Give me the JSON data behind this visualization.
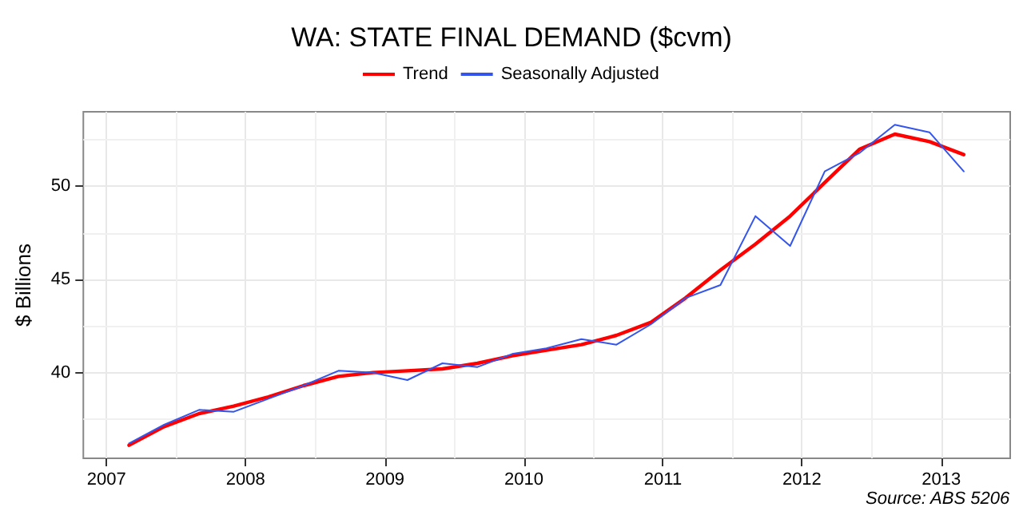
{
  "chart_data": {
    "type": "line",
    "title": "WA: STATE FINAL DEMAND ($cvm)",
    "ylabel": "$ Billions",
    "annotations": [
      "Source: ABS 5206"
    ],
    "x": [
      "2007-03",
      "2007-06",
      "2007-09",
      "2007-12",
      "2008-03",
      "2008-06",
      "2008-09",
      "2008-12",
      "2009-03",
      "2009-06",
      "2009-09",
      "2009-12",
      "2010-03",
      "2010-06",
      "2010-09",
      "2010-12",
      "2011-03",
      "2011-06",
      "2011-09",
      "2011-12",
      "2012-03",
      "2012-06",
      "2012-09",
      "2012-12",
      "2013-03"
    ],
    "series": [
      {
        "name": "Trend",
        "color": "#ff0000",
        "values": [
          36.1,
          37.1,
          37.8,
          38.2,
          38.7,
          39.3,
          39.8,
          40.0,
          40.1,
          40.2,
          40.5,
          40.9,
          41.2,
          41.5,
          42.0,
          42.7,
          44.0,
          45.5,
          46.9,
          48.4,
          50.2,
          52.0,
          52.8,
          52.4,
          51.7
        ]
      },
      {
        "name": "Seasonally Adjusted",
        "color": "#3355ee",
        "values": [
          36.2,
          37.2,
          38.0,
          37.9,
          38.6,
          39.3,
          40.1,
          40.0,
          39.6,
          40.5,
          40.3,
          41.0,
          41.3,
          41.8,
          41.5,
          42.6,
          44.0,
          44.7,
          48.4,
          46.8,
          50.8,
          51.8,
          53.3,
          52.9,
          50.8
        ]
      }
    ],
    "xlim": [
      "2006-11",
      "2013-07"
    ],
    "xticks": [
      {
        "value": "2007-01",
        "label": "2007"
      },
      {
        "value": "2007-07",
        "label": null
      },
      {
        "value": "2008-01",
        "label": "2008"
      },
      {
        "value": "2008-07",
        "label": null
      },
      {
        "value": "2009-01",
        "label": "2009"
      },
      {
        "value": "2009-07",
        "label": null
      },
      {
        "value": "2010-01",
        "label": "2010"
      },
      {
        "value": "2010-07",
        "label": null
      },
      {
        "value": "2011-01",
        "label": "2011"
      },
      {
        "value": "2011-07",
        "label": null
      },
      {
        "value": "2012-01",
        "label": "2012"
      },
      {
        "value": "2012-07",
        "label": null
      },
      {
        "value": "2013-01",
        "label": "2013"
      }
    ],
    "ylim": [
      35.4,
      54.0
    ],
    "yticks": [
      {
        "value": 37.5,
        "label": null
      },
      40,
      {
        "value": 42.5,
        "label": null
      },
      45,
      {
        "value": 47.5,
        "label": null
      },
      50,
      {
        "value": 52.5,
        "label": null
      }
    ],
    "grid": true,
    "legend": "top",
    "marker": "none",
    "line_style": "solid"
  }
}
